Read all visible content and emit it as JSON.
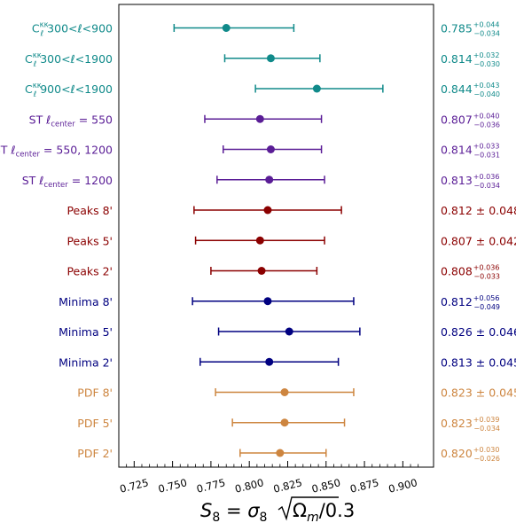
{
  "chart_data": {
    "type": "scatter",
    "xlabel_parts": {
      "main": "S",
      "main_sub": "8",
      "eq": " = ",
      "sigma": "σ",
      "sigma_sub": "8",
      "radicand_a": "Ω",
      "radicand_a_sub": "m",
      "radicand_b": "/0.3"
    },
    "xlim": [
      0.715,
      0.92
    ],
    "xticks": [
      0.725,
      0.75,
      0.775,
      0.8,
      0.825,
      0.85,
      0.875,
      0.9
    ],
    "xtick_labels": [
      "0.725",
      "0.750",
      "0.775",
      "0.800",
      "0.825",
      "0.850",
      "0.875",
      "0.900"
    ],
    "grid": false,
    "rows": [
      {
        "label": {
          "pre": "C",
          "sub": "ℓ",
          "sup": "κκ",
          "post": " 300<ℓ<900"
        },
        "value": 0.785,
        "plus": 0.044,
        "minus": 0.034,
        "annotation": {
          "central": "0.785",
          "plus": "+0.044",
          "minus": "−0.034"
        },
        "color": "#108a8a"
      },
      {
        "label": {
          "pre": "C",
          "sub": "ℓ",
          "sup": "κκ",
          "post": " 300<ℓ<1900"
        },
        "value": 0.814,
        "plus": 0.032,
        "minus": 0.03,
        "annotation": {
          "central": "0.814",
          "plus": "+0.032",
          "minus": "−0.030"
        },
        "color": "#108a8a"
      },
      {
        "label": {
          "pre": "C",
          "sub": "ℓ",
          "sup": "κκ",
          "post": " 900<ℓ<1900"
        },
        "value": 0.844,
        "plus": 0.043,
        "minus": 0.04,
        "annotation": {
          "central": "0.844",
          "plus": "+0.043",
          "minus": "−0.040"
        },
        "color": "#108a8a"
      },
      {
        "label": {
          "pre": "ST ℓ",
          "sub": "center",
          "sup": "",
          "post": " = 550"
        },
        "value": 0.807,
        "plus": 0.04,
        "minus": 0.036,
        "annotation": {
          "central": "0.807",
          "plus": "+0.040",
          "minus": "−0.036"
        },
        "color": "#5a1d96"
      },
      {
        "label": {
          "pre": "ST ℓ",
          "sub": "center",
          "sup": "",
          "post": " = 550, 1200"
        },
        "value": 0.814,
        "plus": 0.033,
        "minus": 0.031,
        "annotation": {
          "central": "0.814",
          "plus": "+0.033",
          "minus": "−0.031"
        },
        "color": "#5a1d96"
      },
      {
        "label": {
          "pre": "ST ℓ",
          "sub": "center",
          "sup": "",
          "post": " = 1200"
        },
        "value": 0.813,
        "plus": 0.036,
        "minus": 0.034,
        "annotation": {
          "central": "0.813",
          "plus": "+0.036",
          "minus": "−0.034"
        },
        "color": "#5a1d96"
      },
      {
        "label": {
          "pre": "Peaks 8'",
          "sub": "",
          "sup": "",
          "post": ""
        },
        "value": 0.812,
        "plus": 0.048,
        "minus": 0.048,
        "annotation": {
          "central": "0.812 ± 0.048",
          "plus": "",
          "minus": ""
        },
        "color": "#8b0000"
      },
      {
        "label": {
          "pre": "Peaks 5'",
          "sub": "",
          "sup": "",
          "post": ""
        },
        "value": 0.807,
        "plus": 0.042,
        "minus": 0.042,
        "annotation": {
          "central": "0.807 ± 0.042",
          "plus": "",
          "minus": ""
        },
        "color": "#8b0000"
      },
      {
        "label": {
          "pre": "Peaks 2'",
          "sub": "",
          "sup": "",
          "post": ""
        },
        "value": 0.808,
        "plus": 0.036,
        "minus": 0.033,
        "annotation": {
          "central": "0.808",
          "plus": "+0.036",
          "minus": "−0.033"
        },
        "color": "#8b0000"
      },
      {
        "label": {
          "pre": "Minima 8'",
          "sub": "",
          "sup": "",
          "post": ""
        },
        "value": 0.812,
        "plus": 0.056,
        "minus": 0.049,
        "annotation": {
          "central": "0.812",
          "plus": "+0.056",
          "minus": "−0.049"
        },
        "color": "#000080"
      },
      {
        "label": {
          "pre": "Minima 5'",
          "sub": "",
          "sup": "",
          "post": ""
        },
        "value": 0.826,
        "plus": 0.046,
        "minus": 0.046,
        "annotation": {
          "central": "0.826 ± 0.046",
          "plus": "",
          "minus": ""
        },
        "color": "#000080"
      },
      {
        "label": {
          "pre": "Minima 2'",
          "sub": "",
          "sup": "",
          "post": ""
        },
        "value": 0.813,
        "plus": 0.045,
        "minus": 0.045,
        "annotation": {
          "central": "0.813 ± 0.045",
          "plus": "",
          "minus": ""
        },
        "color": "#000080"
      },
      {
        "label": {
          "pre": "PDF 8'",
          "sub": "",
          "sup": "",
          "post": ""
        },
        "value": 0.823,
        "plus": 0.045,
        "minus": 0.045,
        "annotation": {
          "central": "0.823 ± 0.045",
          "plus": "",
          "minus": ""
        },
        "color": "#cd853f"
      },
      {
        "label": {
          "pre": "PDF 5'",
          "sub": "",
          "sup": "",
          "post": ""
        },
        "value": 0.823,
        "plus": 0.039,
        "minus": 0.034,
        "annotation": {
          "central": "0.823",
          "plus": "+0.039",
          "minus": "−0.034"
        },
        "color": "#cd853f"
      },
      {
        "label": {
          "pre": "PDF 2'",
          "sub": "",
          "sup": "",
          "post": ""
        },
        "value": 0.82,
        "plus": 0.03,
        "minus": 0.026,
        "annotation": {
          "central": "0.820",
          "plus": "+0.030",
          "minus": "−0.026"
        },
        "color": "#cd853f"
      }
    ]
  }
}
